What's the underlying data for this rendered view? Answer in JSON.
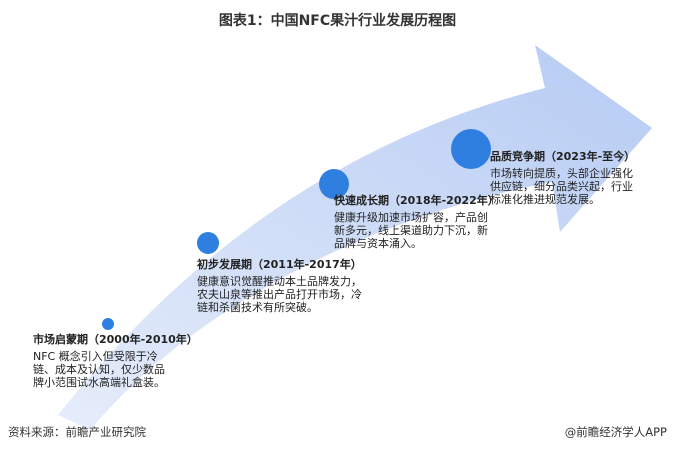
{
  "title": "图表1：中国NFC果汁行业发展历程图",
  "accent_color": "#2f7fe0",
  "arrow_color": "#c4d4f6",
  "stages": [
    {
      "title": "市场启蒙期（2000年-2010年）",
      "body": "NFC 概念引入但受限于冷链、成本及认知，仅少数品牌小范围试水高端礼盒装。"
    },
    {
      "title": "初步发展期（2011年-2017年）",
      "body": "健康意识觉醒推动本土品牌发力，农夫山泉等推出产品打开市场，冷链和杀菌技术有所突破。"
    },
    {
      "title": "快速成长期（2018年-2022年）",
      "body": "健康升级加速市场扩容，产品创新多元，线上渠道助力下沉，新品牌与资本涌入。"
    },
    {
      "title": "品质竞争期（2023年-至今）",
      "body": "市场转向提质，头部企业强化供应链，细分品类兴起，行业标准化推进规范发展。"
    }
  ],
  "footer": {
    "source": "资料来源：前瞻产业研究院",
    "credit": "@前瞻经济学人APP"
  }
}
